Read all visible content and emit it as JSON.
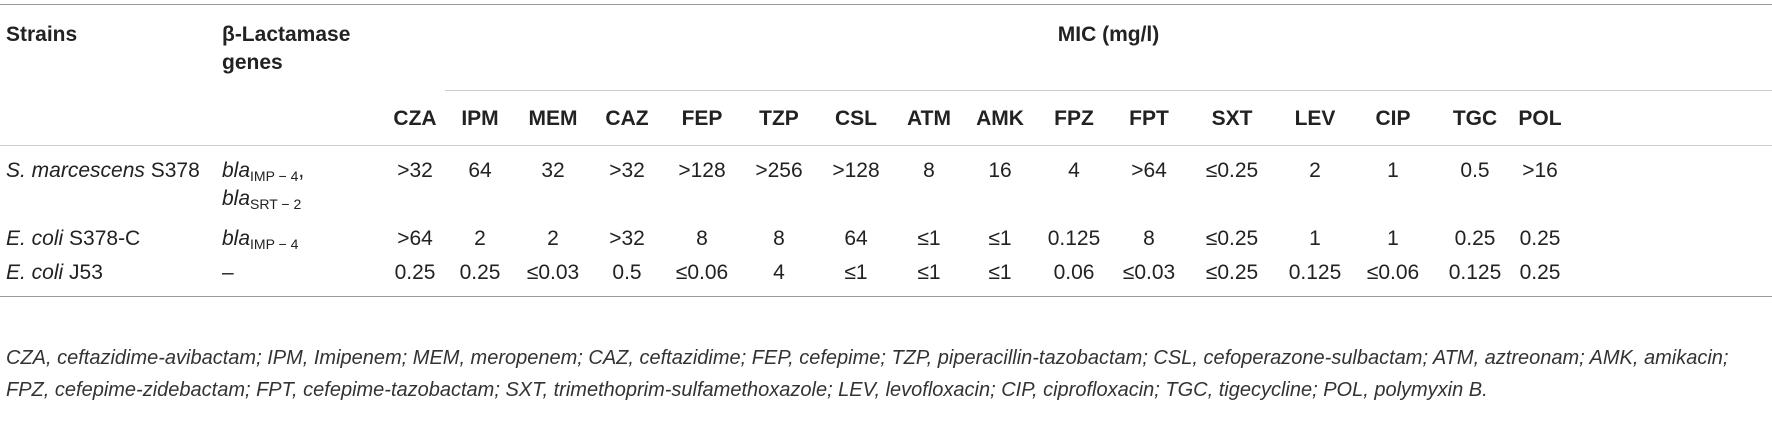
{
  "headers": {
    "strains": "Strains",
    "genes_line1": "β-Lactamase",
    "genes_line2": "genes",
    "mic": "MIC (mg/l)",
    "drugs": [
      "CZA",
      "IPM",
      "MEM",
      "CAZ",
      "FEP",
      "TZP",
      "CSL",
      "ATM",
      "AMK",
      "FPZ",
      "FPT",
      "SXT",
      "LEV",
      "CIP",
      "TGC",
      "POL"
    ]
  },
  "rows": [
    {
      "strain_italic": "S. marcescens",
      "strain_rest": " S378",
      "genes": [
        {
          "base": "bla",
          "sub": "IMP − 4",
          "suffix": ","
        },
        {
          "base": "bla",
          "sub": "SRT − 2",
          "suffix": ""
        }
      ],
      "values": [
        ">32",
        "64",
        "32",
        ">32",
        ">128",
        ">256",
        ">128",
        "8",
        "16",
        "4",
        ">64",
        "≤0.25",
        "2",
        "1",
        "0.5",
        ">16"
      ]
    },
    {
      "strain_italic": "E. coli",
      "strain_rest": " S378-C",
      "genes": [
        {
          "base": "bla",
          "sub": "IMP − 4",
          "suffix": ""
        }
      ],
      "values": [
        ">64",
        "2",
        "2",
        ">32",
        "8",
        "8",
        "64",
        "≤1",
        "≤1",
        "0.125",
        "8",
        "≤0.25",
        "1",
        "1",
        "0.25",
        "0.25"
      ]
    },
    {
      "strain_italic": "E. coli",
      "strain_rest": " J53",
      "genes_text": "–",
      "values": [
        "0.25",
        "0.25",
        "≤0.03",
        "0.5",
        "≤0.06",
        "4",
        "≤1",
        "≤1",
        "≤1",
        "0.06",
        "≤0.03",
        "≤0.25",
        "0.125",
        "≤0.06",
        "0.125",
        "0.25"
      ]
    }
  ],
  "footnote": "CZA, ceftazidime-avibactam; IPM, Imipenem; MEM, meropenem; CAZ, ceftazidime; FEP, cefepime; TZP, piperacillin-tazobactam; CSL, cefoperazone-sulbactam; ATM, aztreonam; AMK, amikacin; FPZ, cefepime-zidebactam; FPT, cefepime-tazobactam; SXT, trimethoprim-sulfamethoxazole; LEV, levofloxacin; CIP, ciprofloxacin; TGC, tigecycline; POL, polymyxin B."
}
